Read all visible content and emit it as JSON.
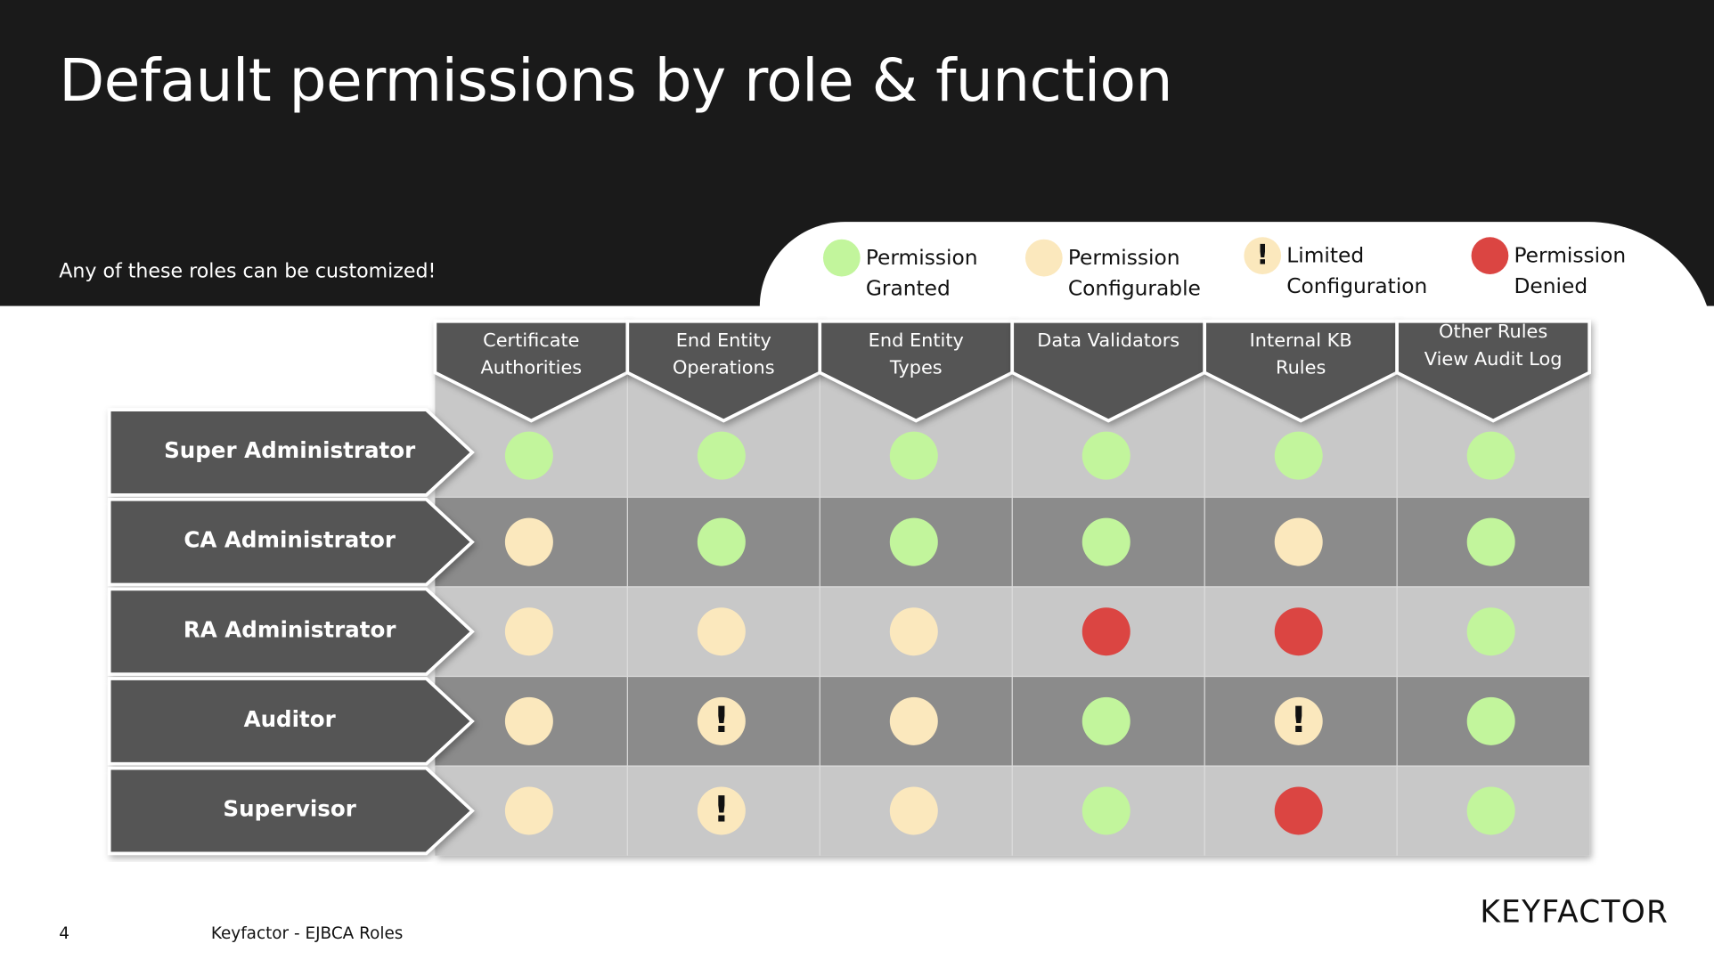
{
  "header": {
    "title": "Default permissions by role & function",
    "subtitle": "Any of these roles can be customized!"
  },
  "legend": [
    {
      "label": "Permission Granted",
      "color": "#c2f59c"
    },
    {
      "label": "Permission Configurable",
      "color": "#fbe8bd"
    },
    {
      "label": "Limited Configuration",
      "color": "#fbe8bd",
      "icon": "!"
    },
    {
      "label": "Permission Denied",
      "color": "#db4542"
    }
  ],
  "table": {
    "columns": [
      "Certificate Authorities",
      "End Entity Operations",
      "End Entity Types",
      "Data Validators",
      "Internal KB Rules",
      "Other Rules View Audit Log"
    ],
    "rows": [
      {
        "role": "Super Administrator",
        "cells": [
          "Permission Granted",
          "Permission Granted",
          "Permission Granted",
          "Permission Granted",
          "Permission Granted",
          "Permission Granted"
        ]
      },
      {
        "role": "CA Administrator",
        "cells": [
          "Permission Configurable",
          "Permission Granted",
          "Permission Granted",
          "Permission Granted",
          "Permission Configurable",
          "Permission Granted"
        ]
      },
      {
        "role": "RA Administrator",
        "cells": [
          "Permission Configurable",
          "Permission Configurable",
          "Permission Configurable",
          "Permission Denied",
          "Permission Denied",
          "Permission Granted"
        ]
      },
      {
        "role": "Auditor",
        "cells": [
          "Permission Configurable",
          "Limited Configuration",
          "Permission Configurable",
          "Permission Granted",
          "Limited Configuration",
          "Permission Granted"
        ]
      },
      {
        "role": "Supervisor",
        "cells": [
          "Permission Configurable",
          "Limited Configuration",
          "Permission Configurable",
          "Permission Granted",
          "Permission Denied",
          "Permission Granted"
        ]
      }
    ]
  },
  "footer": {
    "page": "4",
    "text": "Keyfactor - EJBCA Roles",
    "logo": "KEYFACTOR"
  }
}
